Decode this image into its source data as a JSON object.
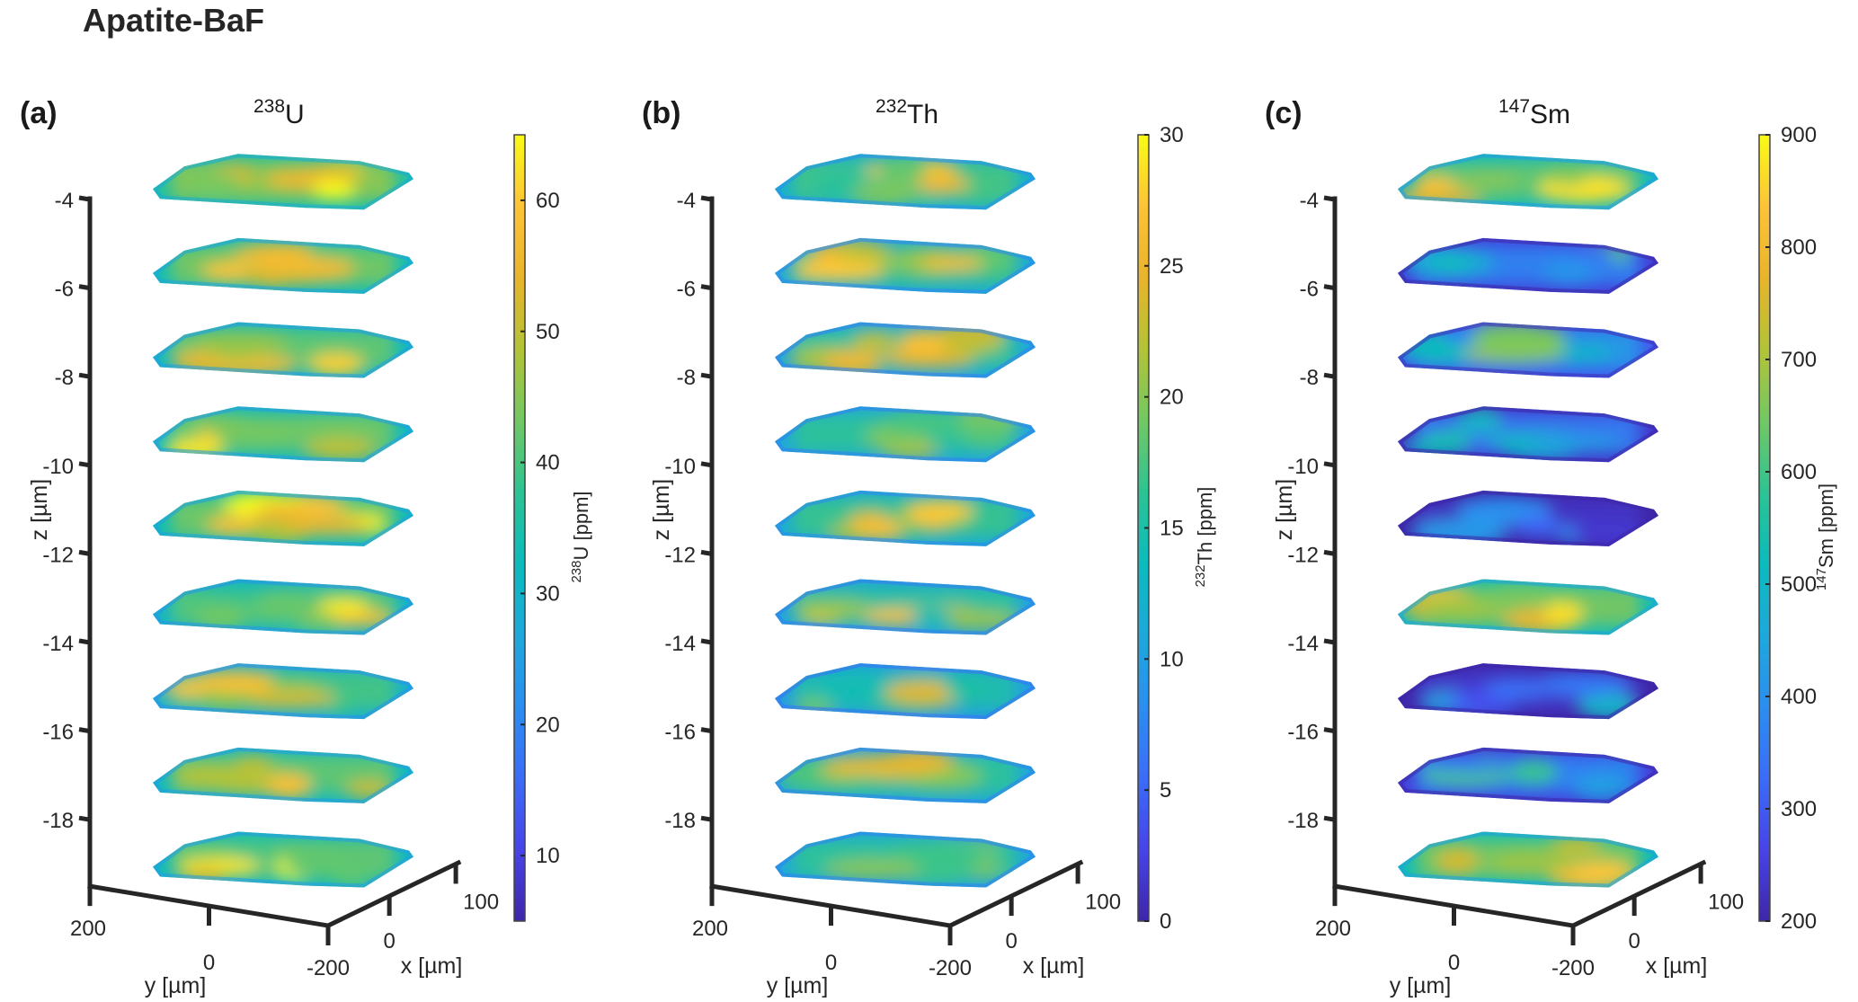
{
  "figure_title": "Apatite-BaF",
  "chart_data": [
    {
      "type": "heatmap",
      "panel_label": "(a)",
      "title_sup": "238",
      "title_base": "U",
      "xlabel": "x [µm]",
      "ylabel": "y [µm]",
      "zlabel": "z [µm]",
      "z_ticks": [
        -4,
        -6,
        -8,
        -10,
        -12,
        -14,
        -16,
        -18
      ],
      "y_ticks": [
        200,
        0,
        -200
      ],
      "x_ticks": [
        0,
        100
      ],
      "z_range": [
        -19.5,
        -3.5
      ],
      "slice_depths": [
        -3.7,
        -5.6,
        -7.5,
        -9.4,
        -11.3,
        -13.3,
        -15.2,
        -17.1,
        -19.0
      ],
      "slice_mean_levels": [
        0.78,
        0.75,
        0.72,
        0.72,
        0.74,
        0.7,
        0.68,
        0.72,
        0.72
      ],
      "colorbar": {
        "label_sup": "238",
        "label_base": "U [ppm]",
        "range": [
          5,
          65
        ],
        "ticks": [
          10,
          20,
          30,
          40,
          50,
          60
        ],
        "colormap": "parula"
      }
    },
    {
      "type": "heatmap",
      "panel_label": "(b)",
      "title_sup": "232",
      "title_base": "Th",
      "xlabel": "x [µm]",
      "ylabel": "y [µm]",
      "zlabel": "z [µm]",
      "z_ticks": [
        -4,
        -6,
        -8,
        -10,
        -12,
        -14,
        -16,
        -18
      ],
      "y_ticks": [
        200,
        0,
        -200
      ],
      "x_ticks": [
        0,
        100
      ],
      "z_range": [
        -19.5,
        -3.5
      ],
      "slice_depths": [
        -3.7,
        -5.6,
        -7.5,
        -9.4,
        -11.3,
        -13.3,
        -15.2,
        -17.1,
        -19.0
      ],
      "slice_mean_levels": [
        0.68,
        0.66,
        0.64,
        0.64,
        0.66,
        0.63,
        0.6,
        0.64,
        0.64
      ],
      "colorbar": {
        "label_sup": "232",
        "label_base": "Th [ppm]",
        "range": [
          0,
          30
        ],
        "ticks": [
          0,
          5,
          10,
          15,
          20,
          25,
          30
        ],
        "colormap": "parula"
      }
    },
    {
      "type": "heatmap",
      "panel_label": "(c)",
      "title_sup": "147",
      "title_base": "Sm",
      "xlabel": "x [µm]",
      "ylabel": "y [µm]",
      "zlabel": "z [µm]",
      "z_ticks": [
        -4,
        -6,
        -8,
        -10,
        -12,
        -14,
        -16,
        -18
      ],
      "y_ticks": [
        200,
        0,
        -200
      ],
      "x_ticks": [
        0,
        100
      ],
      "z_range": [
        -19.5,
        -3.5
      ],
      "slice_depths": [
        -3.7,
        -5.6,
        -7.5,
        -9.4,
        -11.3,
        -13.3,
        -15.2,
        -17.1,
        -19.0
      ],
      "slice_mean_levels": [
        0.72,
        0.35,
        0.42,
        0.33,
        0.14,
        0.75,
        0.15,
        0.35,
        0.74
      ],
      "colorbar": {
        "label_sup": "147",
        "label_base": "Sm [ppm]",
        "range": [
          200,
          900
        ],
        "ticks": [
          200,
          300,
          400,
          500,
          600,
          700,
          800,
          900
        ],
        "colormap": "parula"
      }
    }
  ],
  "colors": {
    "axis": "#262626",
    "parula_stops": [
      "#3e26a8",
      "#4744e8",
      "#3b6cf7",
      "#2b8ef0",
      "#1ea8db",
      "#0bbbbd",
      "#2dc393",
      "#72c863",
      "#b3c337",
      "#e8b42c",
      "#fdc338",
      "#f9fb15"
    ]
  }
}
